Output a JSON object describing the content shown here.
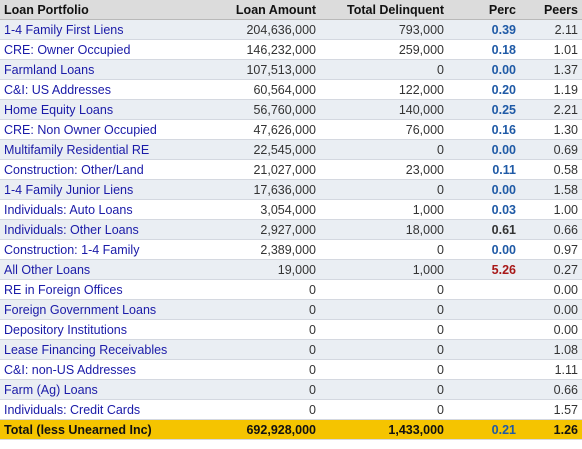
{
  "table": {
    "columns": [
      "Loan Portfolio",
      "Loan Amount",
      "Total Delinquent",
      "Perc",
      "Peers"
    ],
    "rows": [
      {
        "name": "1-4 Family First Liens",
        "amount": "204,636,000",
        "delinquent": "793,000",
        "perc": "0.39",
        "peers": "2.11",
        "perc_level": "normal"
      },
      {
        "name": "CRE: Owner Occupied",
        "amount": "146,232,000",
        "delinquent": "259,000",
        "perc": "0.18",
        "peers": "1.01",
        "perc_level": "normal"
      },
      {
        "name": "Farmland Loans",
        "amount": "107,513,000",
        "delinquent": "0",
        "perc": "0.00",
        "peers": "1.37",
        "perc_level": "normal"
      },
      {
        "name": "C&I: US Addresses",
        "amount": "60,564,000",
        "delinquent": "122,000",
        "perc": "0.20",
        "peers": "1.19",
        "perc_level": "normal"
      },
      {
        "name": "Home Equity Loans",
        "amount": "56,760,000",
        "delinquent": "140,000",
        "perc": "0.25",
        "peers": "2.21",
        "perc_level": "normal"
      },
      {
        "name": "CRE: Non Owner Occupied",
        "amount": "47,626,000",
        "delinquent": "76,000",
        "perc": "0.16",
        "peers": "1.30",
        "perc_level": "normal"
      },
      {
        "name": "Multifamily Residential RE",
        "amount": "22,545,000",
        "delinquent": "0",
        "perc": "0.00",
        "peers": "0.69",
        "perc_level": "normal"
      },
      {
        "name": "Construction: Other/Land",
        "amount": "21,027,000",
        "delinquent": "23,000",
        "perc": "0.11",
        "peers": "0.58",
        "perc_level": "normal"
      },
      {
        "name": "1-4 Family Junior Liens",
        "amount": "17,636,000",
        "delinquent": "0",
        "perc": "0.00",
        "peers": "1.58",
        "perc_level": "normal"
      },
      {
        "name": "Individuals: Auto Loans",
        "amount": "3,054,000",
        "delinquent": "1,000",
        "perc": "0.03",
        "peers": "1.00",
        "perc_level": "normal"
      },
      {
        "name": "Individuals: Other Loans",
        "amount": "2,927,000",
        "delinquent": "18,000",
        "perc": "0.61",
        "peers": "0.66",
        "perc_level": "mid"
      },
      {
        "name": "Construction: 1-4 Family",
        "amount": "2,389,000",
        "delinquent": "0",
        "perc": "0.00",
        "peers": "0.97",
        "perc_level": "normal"
      },
      {
        "name": "All Other Loans",
        "amount": "19,000",
        "delinquent": "1,000",
        "perc": "5.26",
        "peers": "0.27",
        "perc_level": "high"
      },
      {
        "name": "RE in Foreign Offices",
        "amount": "0",
        "delinquent": "0",
        "perc": "",
        "peers": "0.00",
        "perc_level": "normal"
      },
      {
        "name": "Foreign Government Loans",
        "amount": "0",
        "delinquent": "0",
        "perc": "",
        "peers": "0.00",
        "perc_level": "normal"
      },
      {
        "name": "Depository Institutions",
        "amount": "0",
        "delinquent": "0",
        "perc": "",
        "peers": "0.00",
        "perc_level": "normal"
      },
      {
        "name": "Lease Financing Receivables",
        "amount": "0",
        "delinquent": "0",
        "perc": "",
        "peers": "1.08",
        "perc_level": "normal"
      },
      {
        "name": "C&I: non-US Addresses",
        "amount": "0",
        "delinquent": "0",
        "perc": "",
        "peers": "1.11",
        "perc_level": "normal"
      },
      {
        "name": "Farm (Ag) Loans",
        "amount": "0",
        "delinquent": "0",
        "perc": "",
        "peers": "0.66",
        "perc_level": "normal"
      },
      {
        "name": "Individuals: Credit Cards",
        "amount": "0",
        "delinquent": "0",
        "perc": "",
        "peers": "1.57",
        "perc_level": "normal"
      }
    ],
    "total": {
      "name": "Total (less Unearned Inc)",
      "amount": "692,928,000",
      "delinquent": "1,433,000",
      "perc": "0.21",
      "peers": "1.26"
    }
  },
  "colors": {
    "link": "#1a1aa8",
    "perc_normal": "#1f5aa6",
    "perc_high": "#a81818",
    "total_bg": "#f5c400",
    "header_bg": "#dcdcdc",
    "stripe": "#eaeef3"
  }
}
